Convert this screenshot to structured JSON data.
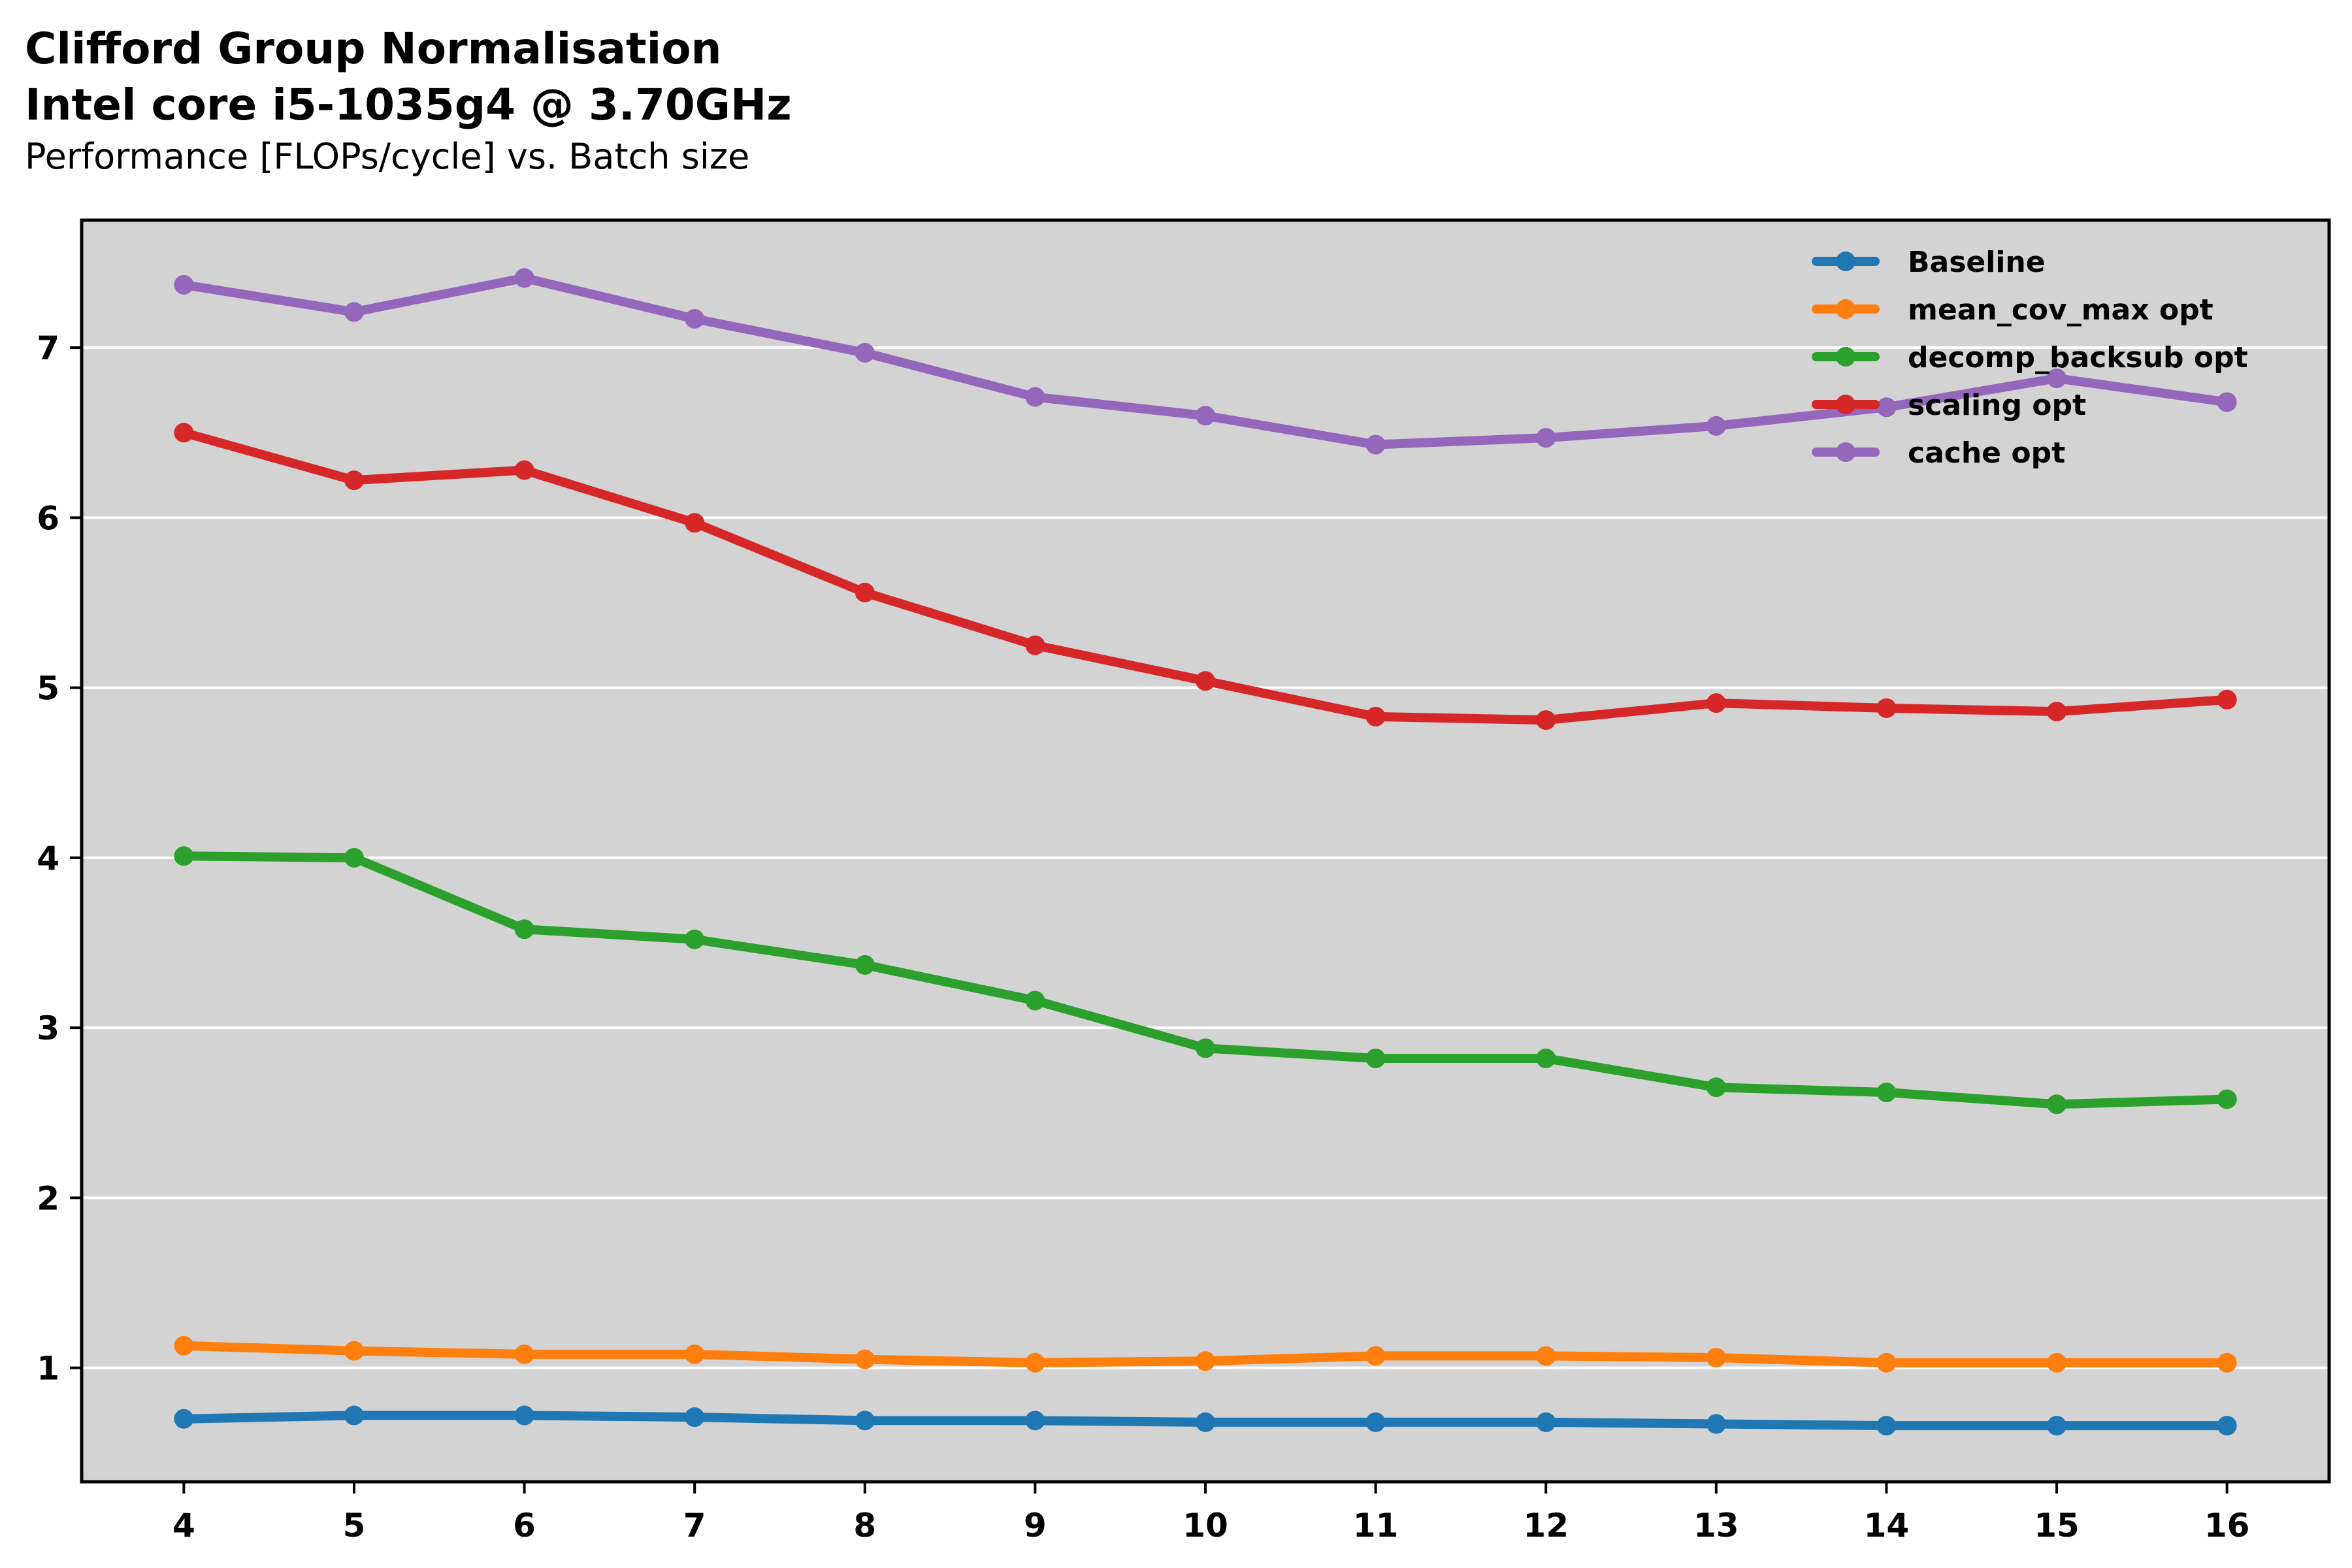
{
  "title": "Clifford Group Normalisation",
  "subtitle": "Intel core i5-1035g4 @ 3.70GHz",
  "caption": "Performance [FLOPs/cycle] vs. Batch size",
  "colors": {
    "background": "#ffffff",
    "plot_background": "#d3d3d3",
    "grid": "#ffffff",
    "axis": "#000000"
  },
  "chart_data": {
    "type": "line",
    "xlabel": "",
    "ylabel": "",
    "x": [
      4,
      5,
      6,
      7,
      8,
      9,
      10,
      11,
      12,
      13,
      14,
      15,
      16
    ],
    "xlim": [
      3.4,
      16.6
    ],
    "ylim": [
      0.33,
      7.75
    ],
    "yticks": [
      1,
      2,
      3,
      4,
      5,
      6,
      7
    ],
    "grid": "horizontal",
    "legend_position": "top-right",
    "series": [
      {
        "name": "Baseline",
        "color": "#1f77b4",
        "values": [
          0.7,
          0.72,
          0.72,
          0.71,
          0.69,
          0.69,
          0.68,
          0.68,
          0.68,
          0.67,
          0.66,
          0.66,
          0.66
        ]
      },
      {
        "name": "mean_cov_max opt",
        "color": "#ff7f0e",
        "values": [
          1.13,
          1.1,
          1.08,
          1.08,
          1.05,
          1.03,
          1.04,
          1.07,
          1.07,
          1.06,
          1.03,
          1.03,
          1.03
        ]
      },
      {
        "name": "decomp_backsub opt",
        "color": "#2ca02c",
        "values": [
          4.01,
          4.0,
          3.58,
          3.52,
          3.37,
          3.16,
          2.88,
          2.82,
          2.82,
          2.65,
          2.62,
          2.55,
          2.58
        ]
      },
      {
        "name": "scaling opt",
        "color": "#d62728",
        "values": [
          6.5,
          6.22,
          6.28,
          5.97,
          5.56,
          5.25,
          5.04,
          4.83,
          4.81,
          4.91,
          4.88,
          4.86,
          4.93
        ]
      },
      {
        "name": "cache opt",
        "color": "#9467bd",
        "values": [
          7.37,
          7.21,
          7.41,
          7.17,
          6.97,
          6.71,
          6.6,
          6.43,
          6.47,
          6.54,
          6.65,
          6.82,
          6.68
        ]
      }
    ]
  }
}
